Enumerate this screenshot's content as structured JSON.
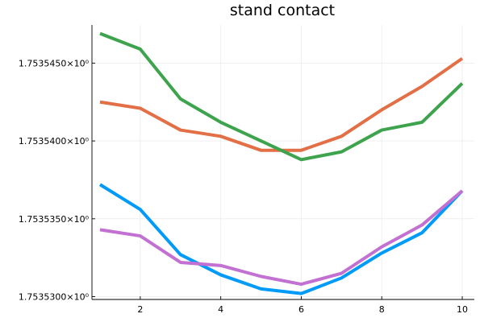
{
  "chart_data": {
    "type": "line",
    "title": "stand contact",
    "xlabel": "",
    "ylabel": "",
    "xlim": [
      0.8,
      10.3
    ],
    "ylim": [
      1.75352982,
      1.75354745
    ],
    "grid": true,
    "legend": "none",
    "x_ticks": [
      {
        "value": 2,
        "label": "2"
      },
      {
        "value": 4,
        "label": "4"
      },
      {
        "value": 6,
        "label": "6"
      },
      {
        "value": 8,
        "label": "8"
      },
      {
        "value": 10,
        "label": "10"
      }
    ],
    "y_ticks": [
      {
        "value": 1.75353,
        "label": "1.7535300×10⁰"
      },
      {
        "value": 1.753535,
        "label": "1.7535350×10⁰"
      },
      {
        "value": 1.75354,
        "label": "1.7535400×10⁰"
      },
      {
        "value": 1.753545,
        "label": "1.7535450×10⁰"
      }
    ],
    "x": [
      1,
      2,
      3,
      4,
      5,
      6,
      7,
      8,
      9,
      10
    ],
    "series": [
      {
        "color": "#009af9",
        "values": [
          1.7535372,
          1.7535356,
          1.7535327,
          1.7535314,
          1.7535305,
          1.7535302,
          1.7535312,
          1.7535328,
          1.7535341,
          1.7535368
        ]
      },
      {
        "color": "#e26f46",
        "values": [
          1.7535425,
          1.7535421,
          1.7535407,
          1.7535403,
          1.7535394,
          1.7535394,
          1.7535403,
          1.753542,
          1.7535435,
          1.7535453
        ]
      },
      {
        "color": "#3da44d",
        "values": [
          1.7535469,
          1.7535459,
          1.7535427,
          1.7535412,
          1.75354,
          1.7535388,
          1.7535393,
          1.7535407,
          1.7535412,
          1.7535437
        ]
      },
      {
        "color": "#c271d2",
        "values": [
          1.7535343,
          1.7535339,
          1.7535322,
          1.753532,
          1.7535313,
          1.7535308,
          1.7535315,
          1.7535332,
          1.7535346,
          1.7535368
        ]
      }
    ]
  }
}
